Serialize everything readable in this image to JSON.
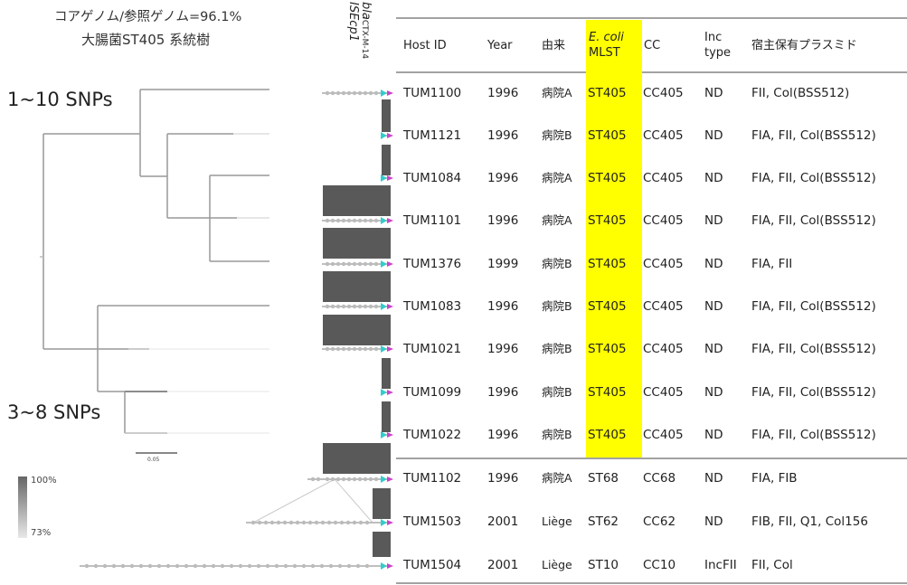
{
  "header": {
    "title_line1": "コアゲノム/参照ゲノム=96.1%",
    "title_line2": "大腸菌ST405 系統樹"
  },
  "tree": {
    "label_top": "1~10 SNPs",
    "label_bottom": "3~8 SNPs",
    "scale_label": "0.05"
  },
  "identity_legend": {
    "max": "100%",
    "min": "73%"
  },
  "gene_labels": {
    "bla_prefix": "bla",
    "bla_sub": "CTX-M-14",
    "is": "ISEcp1"
  },
  "table": {
    "columns": {
      "host": "Host ID",
      "year": "Year",
      "origin": "由来",
      "mlst_line1": "E. coli",
      "mlst_line2": "MLST",
      "cc": "CC",
      "inc_line1": "Inc",
      "inc_line2": "type",
      "plasmids": "宿主保有プラスミド"
    },
    "rows": [
      {
        "host": "TUM1100",
        "year": "1996",
        "origin": "病院A",
        "mlst": "ST405",
        "cc": "CC405",
        "inc": "ND",
        "plasmids": "FII, Col(BSS512)"
      },
      {
        "host": "TUM1121",
        "year": "1996",
        "origin": "病院B",
        "mlst": "ST405",
        "cc": "CC405",
        "inc": "ND",
        "plasmids": "FIA, FII, Col(BSS512)"
      },
      {
        "host": "TUM1084",
        "year": "1996",
        "origin": "病院A",
        "mlst": "ST405",
        "cc": "CC405",
        "inc": "ND",
        "plasmids": "FIA, FII, Col(BSS512)"
      },
      {
        "host": "TUM1101",
        "year": "1996",
        "origin": "病院A",
        "mlst": "ST405",
        "cc": "CC405",
        "inc": "ND",
        "plasmids": "FIA, FII, Col(BSS512)"
      },
      {
        "host": "TUM1376",
        "year": "1999",
        "origin": "病院B",
        "mlst": "ST405",
        "cc": "CC405",
        "inc": "ND",
        "plasmids": "FIA, FII"
      },
      {
        "host": "TUM1083",
        "year": "1996",
        "origin": "病院B",
        "mlst": "ST405",
        "cc": "CC405",
        "inc": "ND",
        "plasmids": "FIA, FII, Col(BSS512)"
      },
      {
        "host": "TUM1021",
        "year": "1996",
        "origin": "病院B",
        "mlst": "ST405",
        "cc": "CC405",
        "inc": "ND",
        "plasmids": "FIA, FII, Col(BSS512)"
      },
      {
        "host": "TUM1099",
        "year": "1996",
        "origin": "病院B",
        "mlst": "ST405",
        "cc": "CC405",
        "inc": "ND",
        "plasmids": "FIA, FII, Col(BSS512)"
      },
      {
        "host": "TUM1022",
        "year": "1996",
        "origin": "病院B",
        "mlst": "ST405",
        "cc": "CC405",
        "inc": "ND",
        "plasmids": "FIA, FII, Col(BSS512)"
      },
      {
        "host": "TUM1102",
        "year": "1996",
        "origin": "病院A",
        "mlst": "ST68",
        "cc": "CC68",
        "inc": "ND",
        "plasmids": "FIA, FIB"
      },
      {
        "host": "TUM1503",
        "year": "2001",
        "origin": "Liège",
        "mlst": "ST62",
        "cc": "CC62",
        "inc": "ND",
        "plasmids": "FIB, FII, Q1, Col156"
      },
      {
        "host": "TUM1504",
        "year": "2001",
        "origin": "Liège",
        "mlst": "ST10",
        "cc": "CC10",
        "inc": "IncFII",
        "plasmids": "FII, Col"
      }
    ]
  },
  "colors": {
    "highlight": "#ffff00",
    "bla_marker": "#33cccc",
    "is_marker": "#cc44cc",
    "block": "#555555",
    "tree": "#999999"
  }
}
